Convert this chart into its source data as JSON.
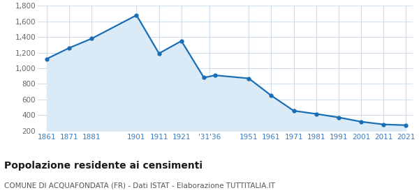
{
  "years": [
    1861,
    1871,
    1881,
    1901,
    1911,
    1921,
    1931,
    1936,
    1951,
    1961,
    1971,
    1981,
    1991,
    2001,
    2011,
    2021
  ],
  "population": [
    1120,
    1260,
    1380,
    1680,
    1190,
    1350,
    880,
    910,
    870,
    650,
    455,
    415,
    370,
    315,
    280,
    270
  ],
  "line_color": "#1a6eb5",
  "fill_color": "#daeaf7",
  "marker": "o",
  "marker_size": 3.5,
  "ylim": [
    200,
    1800
  ],
  "yticks": [
    200,
    400,
    600,
    800,
    1000,
    1200,
    1400,
    1600,
    1800
  ],
  "xtick_positions": [
    1861,
    1871,
    1881,
    1901,
    1911,
    1921,
    1933.5,
    1951,
    1961,
    1971,
    1981,
    1991,
    2001,
    2011,
    2021
  ],
  "xtick_labels": [
    "1861",
    "1871",
    "1881",
    "1901",
    "1911",
    "1921",
    "'31'36",
    "1951",
    "1961",
    "1971",
    "1981",
    "1991",
    "2001",
    "2011",
    "2021"
  ],
  "title": "Popolazione residente ai censimenti",
  "subtitle": "COMUNE DI ACQUAFONDATA (FR) - Dati ISTAT - Elaborazione TUTTITALIA.IT",
  "title_fontsize": 10,
  "subtitle_fontsize": 7.5,
  "bg_color": "#ffffff",
  "grid_color": "#c5d8ea",
  "tick_label_color": "#3a7abf",
  "ytick_label_color": "#666666"
}
